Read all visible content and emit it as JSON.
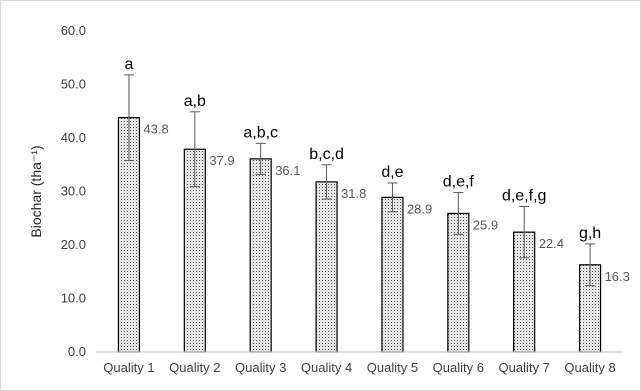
{
  "chart_data": {
    "type": "bar",
    "title": "",
    "xlabel": "",
    "ylabel": "Biochar (tha⁻¹)",
    "ylim": [
      0,
      60
    ],
    "yticks": [
      "0.0",
      "10.0",
      "20.0",
      "30.0",
      "40.0",
      "50.0",
      "60.0"
    ],
    "grid": false,
    "categories": [
      "Quality 1",
      "Quality 2",
      "Quality 3",
      "Quality 4",
      "Quality 5",
      "Quality 6",
      "Quality 7",
      "Quality 8"
    ],
    "values": [
      43.8,
      37.9,
      36.1,
      31.8,
      28.9,
      25.9,
      22.4,
      16.3
    ],
    "value_labels": [
      "43.8",
      "37.9",
      "36.1",
      "31.8",
      "28.9",
      "25.9",
      "22.4",
      "16.3"
    ],
    "error_bars": [
      8.0,
      7.0,
      2.9,
      3.2,
      2.7,
      3.9,
      4.8,
      3.9
    ],
    "significance_letters": [
      "a",
      "a,b",
      "a,b,c",
      "b,c,d",
      "d,e",
      "d,e,f",
      "d,e,f,g",
      "g,h"
    ],
    "bar_pattern": "dotted",
    "colors": {
      "bar_fill": "#e6e6e6",
      "bar_dots": "#555555",
      "bar_edge": "#000000",
      "axis": "#bfbfbf"
    }
  }
}
